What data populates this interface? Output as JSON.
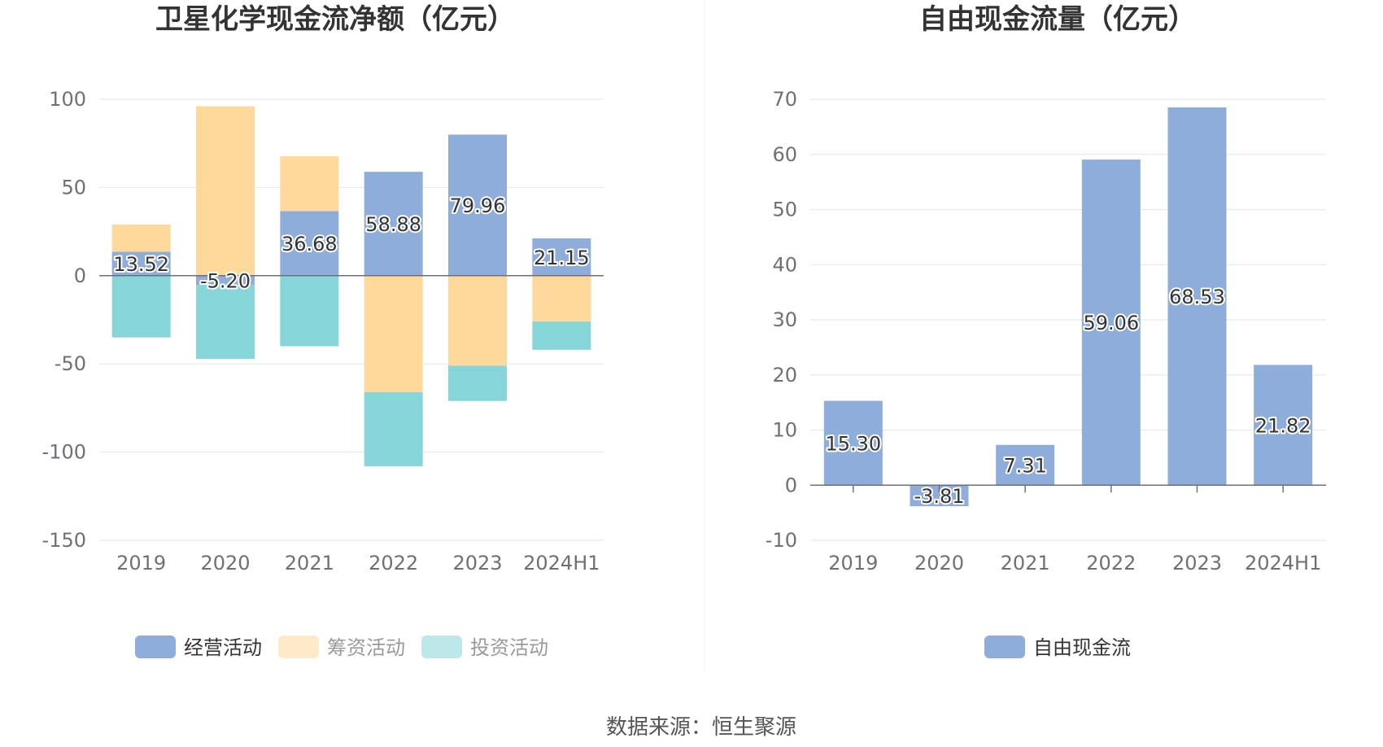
{
  "source_text": "数据来源：恒生聚源",
  "chart_data": [
    {
      "type": "bar",
      "stacked": true,
      "title": "卫星化学现金流净额（亿元）",
      "categories": [
        "2019",
        "2020",
        "2021",
        "2022",
        "2023",
        "2024H1"
      ],
      "ylim": [
        -150,
        100
      ],
      "yticks": [
        100,
        50,
        0,
        -50,
        -100,
        -150
      ],
      "grid": true,
      "legend_position": "bottom",
      "series": [
        {
          "name": "经营活动",
          "color": "#8eaddb",
          "values": [
            13.52,
            -5.2,
            36.68,
            58.88,
            79.96,
            21.15
          ],
          "labels": [
            "13.52",
            "-5.20",
            "36.68",
            "58.88",
            "79.96",
            "21.15"
          ]
        },
        {
          "name": "筹资活动",
          "color": "#fed99b",
          "values": [
            15.5,
            96,
            31,
            -66,
            -51,
            -26
          ]
        },
        {
          "name": "投资活动",
          "color": "#86d6d9",
          "values": [
            -35,
            -42,
            -40,
            -42,
            -20,
            -16
          ]
        }
      ]
    },
    {
      "type": "bar",
      "title": "自由现金流量（亿元）",
      "categories": [
        "2019",
        "2020",
        "2021",
        "2022",
        "2023",
        "2024H1"
      ],
      "ylim": [
        -10,
        70
      ],
      "yticks": [
        70,
        60,
        50,
        40,
        30,
        20,
        10,
        0,
        -10
      ],
      "grid": true,
      "legend_position": "bottom",
      "series": [
        {
          "name": "自由现金流",
          "color": "#8eaddb",
          "values": [
            15.3,
            -3.81,
            7.31,
            59.06,
            68.53,
            21.82
          ],
          "labels": [
            "15.30",
            "-3.81",
            "7.31",
            "59.06",
            "68.53",
            "21.82"
          ]
        }
      ]
    }
  ]
}
